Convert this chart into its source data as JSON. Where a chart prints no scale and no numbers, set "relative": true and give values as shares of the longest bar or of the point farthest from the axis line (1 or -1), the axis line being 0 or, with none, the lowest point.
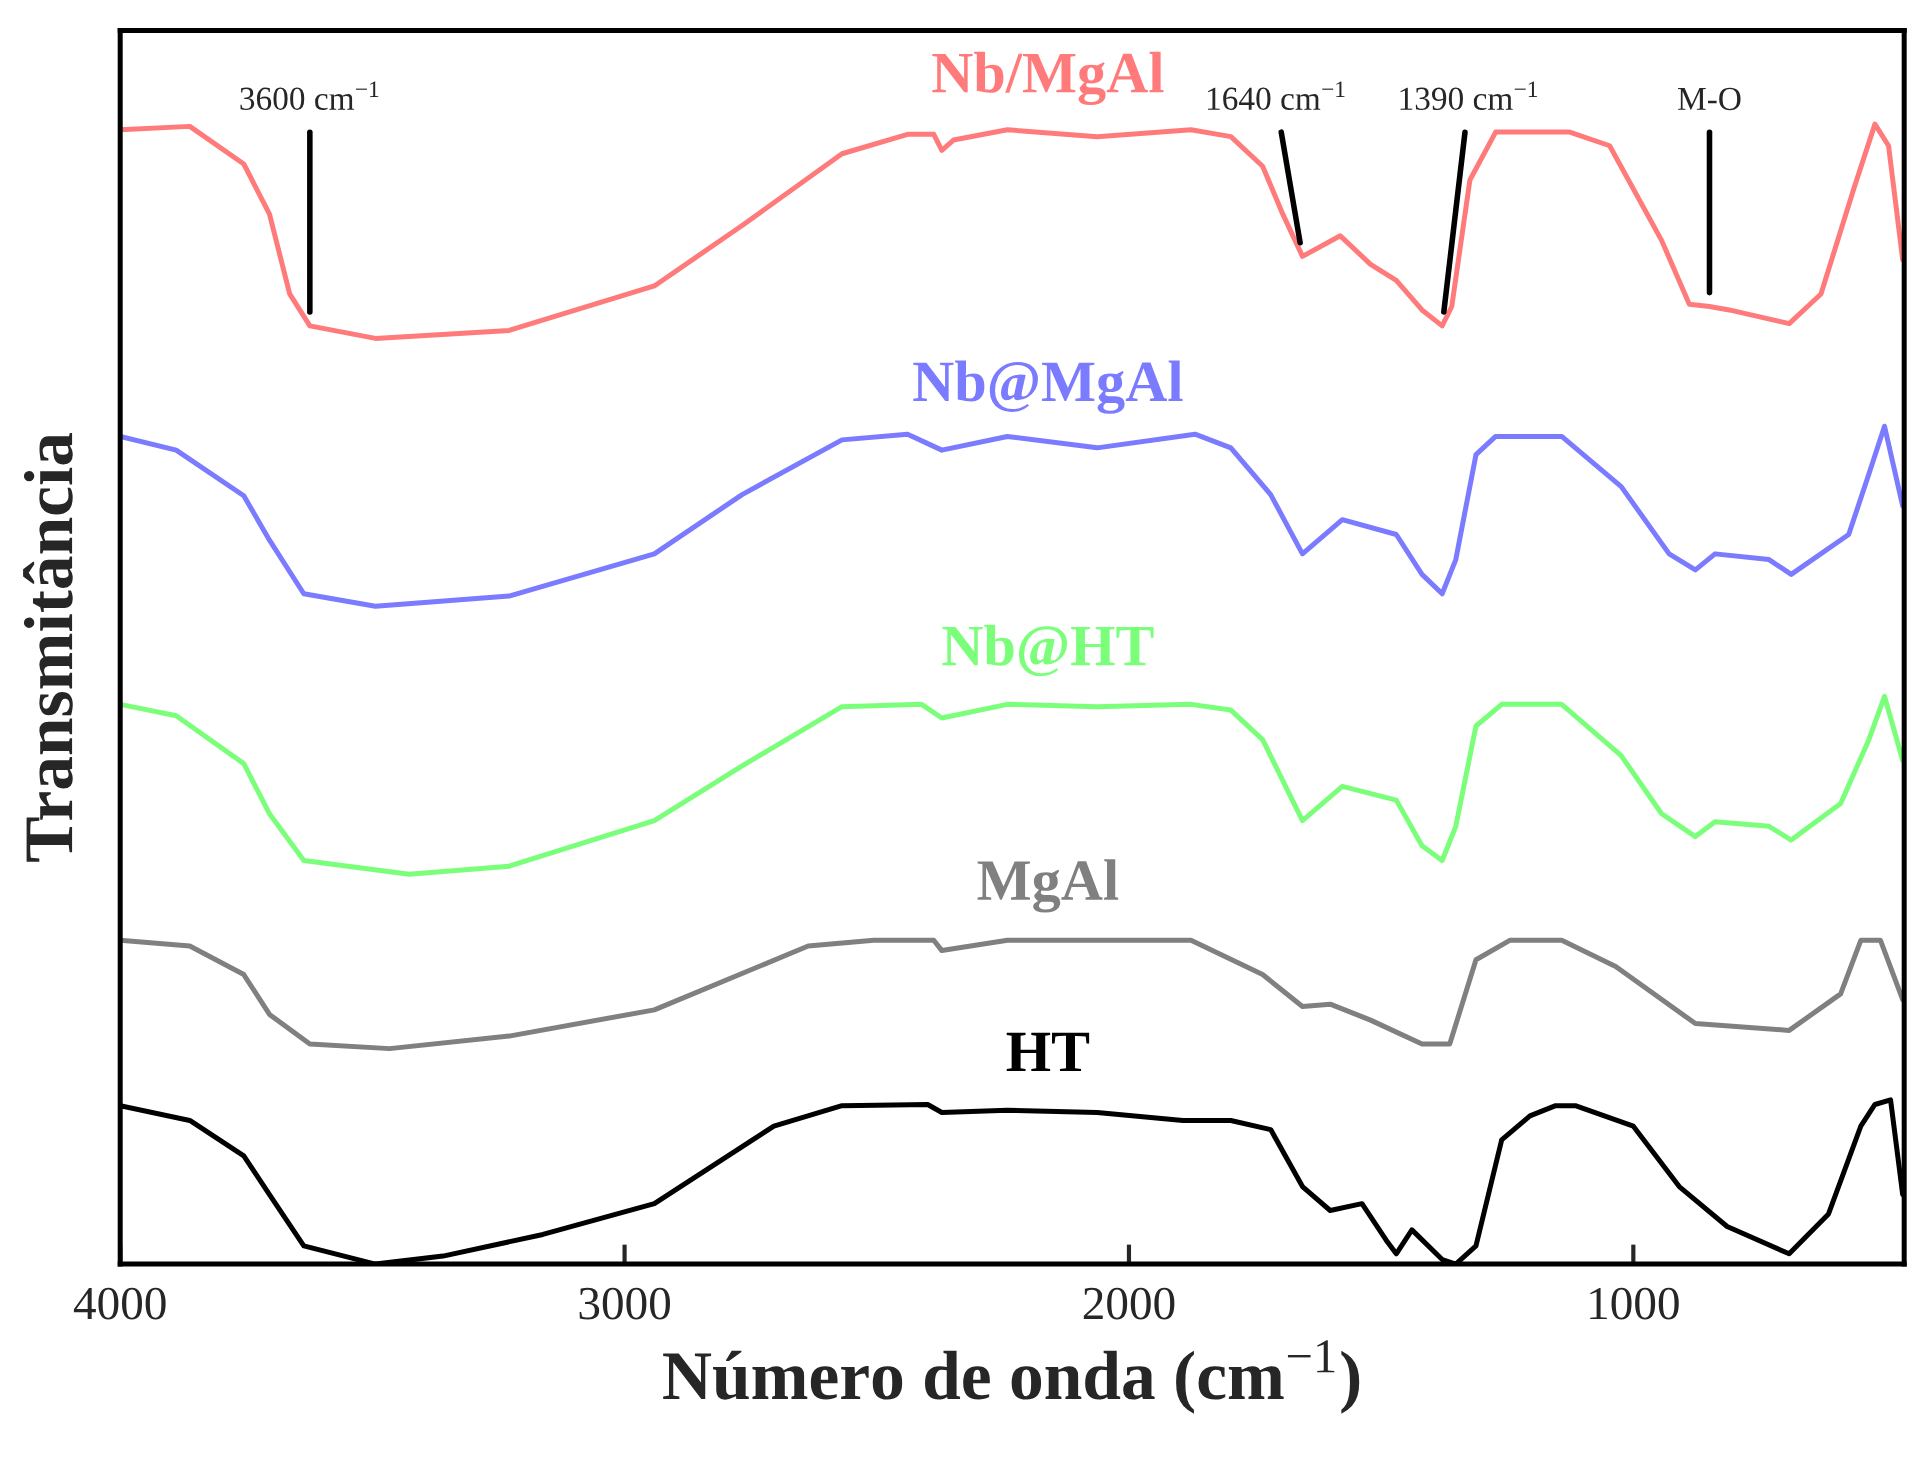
{
  "chart_data": {
    "type": "line",
    "relative": true,
    "xlabel": "Número de onda (cm$^{−1}$)",
    "ylabel": "Transmitância",
    "xlim": [
      4000,
      463
    ],
    "xticks": [
      4000,
      3000,
      2000,
      1000
    ],
    "tick_labels": "x",
    "grid": false,
    "legend": false,
    "series": [
      {
        "name": "Nb/MgAl",
        "color": "#ff7b7b",
        "x": [
          4000,
          3862,
          3755,
          3704,
          3664,
          3624,
          3494,
          3229,
          2941,
          2767,
          2569,
          2439,
          2387,
          2371,
          2348,
          2241,
          2063,
          1877,
          1798,
          1735,
          1695,
          1656,
          1581,
          1521,
          1470,
          1419,
          1379,
          1360,
          1324,
          1273,
          1126,
          1047,
          944,
          889,
          849,
          810,
          691,
          628,
          561,
          521,
          494,
          466
        ],
        "values": [
          0.995,
          0.998,
          0.965,
          0.921,
          0.851,
          0.823,
          0.812,
          0.819,
          0.858,
          0.911,
          0.974,
          0.991,
          0.991,
          0.977,
          0.986,
          0.995,
          0.989,
          0.995,
          0.989,
          0.963,
          0.921,
          0.884,
          0.902,
          0.877,
          0.863,
          0.837,
          0.823,
          0.84,
          0.951,
          0.993,
          0.993,
          0.981,
          0.898,
          0.842,
          0.84,
          0.837,
          0.825,
          0.851,
          0.946,
          1.0,
          0.981,
          0.881
        ]
      },
      {
        "name": "Nb@MgAl",
        "color": "#7b7bff",
        "x": [
          4000,
          3889,
          3755,
          3704,
          3636,
          3494,
          3229,
          2941,
          2767,
          2569,
          2439,
          2371,
          2241,
          2063,
          1869,
          1798,
          1719,
          1656,
          1577,
          1470,
          1419,
          1379,
          1352,
          1312,
          1273,
          1142,
          1024,
          929,
          877,
          838,
          731,
          687,
          573,
          533,
          502,
          466
        ],
        "values": [
          0.726,
          0.714,
          0.674,
          0.635,
          0.588,
          0.577,
          0.586,
          0.623,
          0.675,
          0.723,
          0.728,
          0.714,
          0.726,
          0.716,
          0.728,
          0.716,
          0.675,
          0.623,
          0.653,
          0.64,
          0.605,
          0.588,
          0.618,
          0.71,
          0.726,
          0.726,
          0.682,
          0.623,
          0.609,
          0.623,
          0.618,
          0.605,
          0.64,
          0.693,
          0.735,
          0.665
        ]
      },
      {
        "name": "Nb@HT",
        "color": "#7bff7b",
        "x": [
          4000,
          3889,
          3755,
          3704,
          3636,
          3427,
          3229,
          2941,
          2767,
          2569,
          2411,
          2371,
          2241,
          2063,
          1877,
          1798,
          1735,
          1656,
          1577,
          1470,
          1419,
          1379,
          1352,
          1312,
          1261,
          1142,
          1024,
          944,
          877,
          838,
          731,
          687,
          589,
          533,
          502,
          466
        ],
        "values": [
          0.491,
          0.481,
          0.439,
          0.395,
          0.354,
          0.342,
          0.349,
          0.389,
          0.437,
          0.489,
          0.491,
          0.479,
          0.491,
          0.489,
          0.491,
          0.486,
          0.46,
          0.389,
          0.419,
          0.407,
          0.367,
          0.354,
          0.384,
          0.472,
          0.491,
          0.491,
          0.446,
          0.395,
          0.375,
          0.388,
          0.384,
          0.372,
          0.404,
          0.46,
          0.498,
          0.442
        ]
      },
      {
        "name": "MgAl",
        "color": "#808080",
        "x": [
          4000,
          3862,
          3755,
          3704,
          3624,
          3466,
          3229,
          2941,
          2636,
          2506,
          2387,
          2371,
          2241,
          2063,
          1877,
          1735,
          1656,
          1601,
          1521,
          1419,
          1364,
          1312,
          1245,
          1142,
          1035,
          877,
          691,
          589,
          549,
          510,
          466
        ],
        "values": [
          0.284,
          0.279,
          0.254,
          0.219,
          0.193,
          0.189,
          0.2,
          0.223,
          0.279,
          0.284,
          0.284,
          0.275,
          0.284,
          0.284,
          0.284,
          0.254,
          0.226,
          0.228,
          0.214,
          0.193,
          0.193,
          0.267,
          0.284,
          0.284,
          0.261,
          0.211,
          0.205,
          0.237,
          0.284,
          0.284,
          0.232
        ]
      },
      {
        "name": "HT",
        "color": "#000000",
        "x": [
          4000,
          3862,
          3755,
          3704,
          3636,
          3494,
          3360,
          3162,
          2941,
          2704,
          2569,
          2399,
          2371,
          2241,
          2063,
          1893,
          1798,
          1719,
          1656,
          1601,
          1538,
          1490,
          1470,
          1439,
          1379,
          1352,
          1312,
          1261,
          1205,
          1154,
          1115,
          1000,
          909,
          814,
          691,
          613,
          549,
          521,
          490,
          466
        ],
        "values": [
          0.139,
          0.126,
          0.095,
          0.061,
          0.016,
          0.0,
          0.007,
          0.026,
          0.053,
          0.121,
          0.139,
          0.14,
          0.133,
          0.135,
          0.133,
          0.126,
          0.126,
          0.118,
          0.068,
          0.047,
          0.053,
          0.021,
          0.009,
          0.03,
          0.004,
          0.0,
          0.016,
          0.109,
          0.13,
          0.139,
          0.139,
          0.121,
          0.068,
          0.033,
          0.009,
          0.044,
          0.121,
          0.14,
          0.144,
          0.061
        ]
      }
    ],
    "annotations": [
      {
        "text": "3600 cm$^{−1}$",
        "x": 3624,
        "y": 0.823
      },
      {
        "text": "1640 cm$^{−1}$",
        "x": 1656,
        "y": 0.884
      },
      {
        "text": "1390 cm$^{−1}$",
        "x": 1379,
        "y": 0.823
      },
      {
        "text": "M-O",
        "x": 849,
        "y": 0.84
      }
    ]
  }
}
